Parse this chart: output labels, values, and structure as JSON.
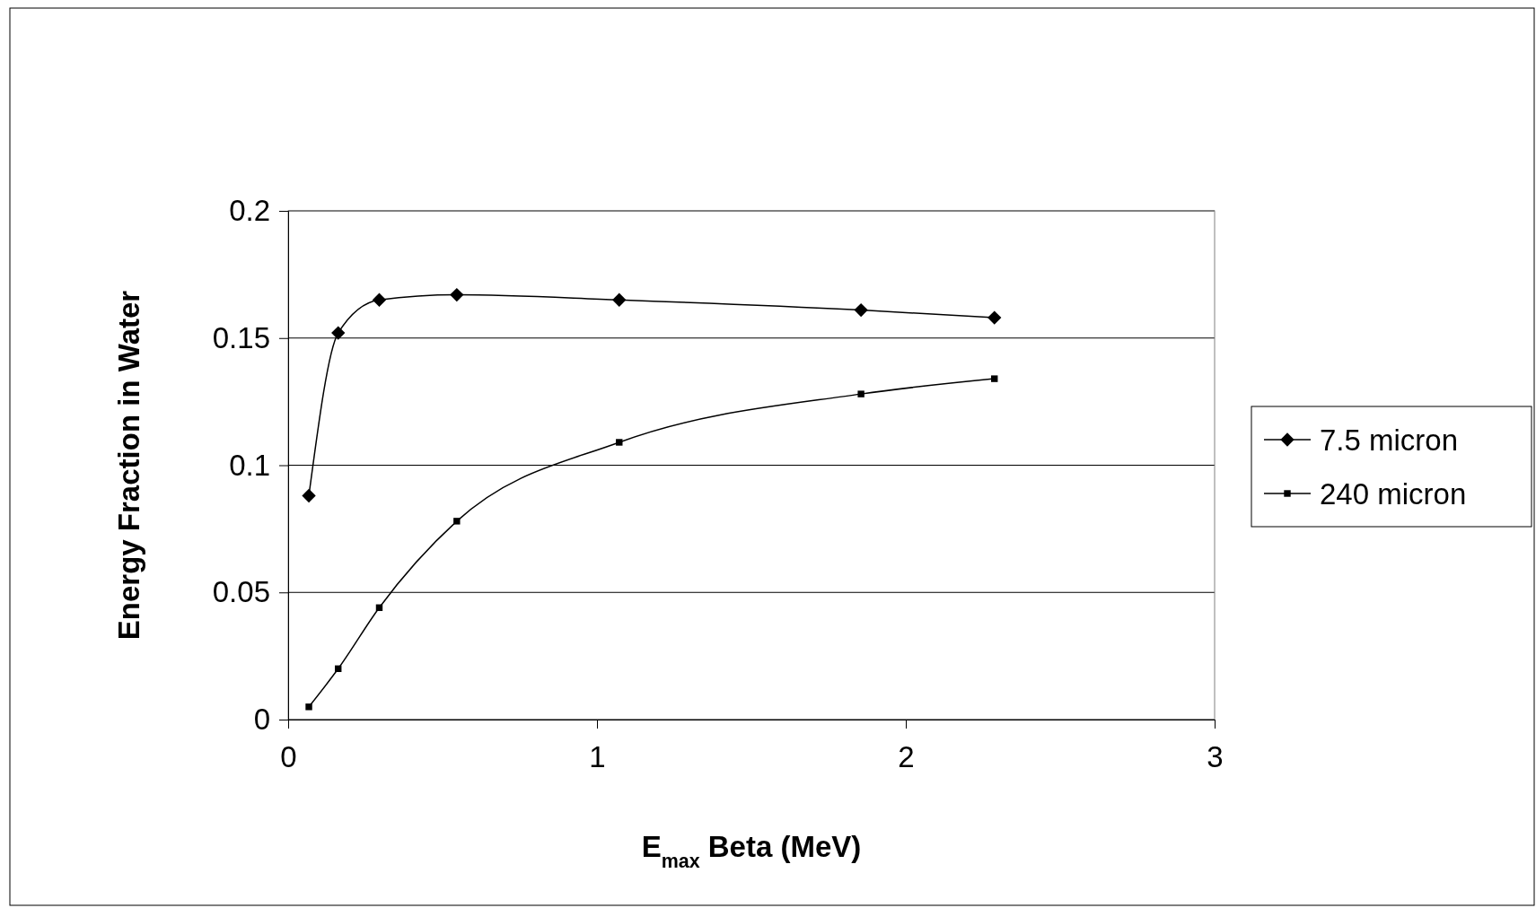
{
  "chart_data": {
    "type": "line",
    "xlabel": "E$_{max}$ Beta (MeV)",
    "ylabel": "Energy Fraction in Water",
    "xlim": [
      0,
      3
    ],
    "xticks": [
      0,
      1,
      2,
      3
    ],
    "ylim": [
      0,
      0.2
    ],
    "yticks": [
      0,
      0.05,
      0.1,
      0.15,
      0.2
    ],
    "grid": "y",
    "legend": "right",
    "series": [
      {
        "name": "7.5 micron",
        "color": "#000000",
        "marker": "diamond",
        "x": [
          0.067,
          0.162,
          0.295,
          0.546,
          1.072,
          1.855,
          2.287
        ],
        "values": [
          0.088,
          0.152,
          0.165,
          0.167,
          0.165,
          0.161,
          0.158
        ]
      },
      {
        "name": "240 micron",
        "color": "#000000",
        "marker": "square",
        "x": [
          0.067,
          0.162,
          0.295,
          0.546,
          1.072,
          1.855,
          2.287
        ],
        "values": [
          0.005,
          0.02,
          0.044,
          0.078,
          0.109,
          0.128,
          0.134
        ]
      }
    ]
  }
}
